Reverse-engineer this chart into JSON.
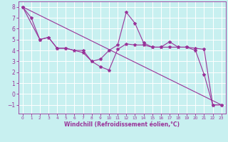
{
  "xlabel": "Windchill (Refroidissement éolien,°C)",
  "bg_color": "#c8f0f0",
  "line_color": "#993399",
  "grid_color": "#ffffff",
  "xlim": [
    -0.5,
    23.5
  ],
  "ylim": [
    -1.8,
    8.5
  ],
  "xticks": [
    0,
    1,
    2,
    3,
    4,
    5,
    6,
    7,
    8,
    9,
    10,
    11,
    12,
    13,
    14,
    15,
    16,
    17,
    18,
    19,
    20,
    21,
    22,
    23
  ],
  "yticks": [
    -1,
    0,
    1,
    2,
    3,
    4,
    5,
    6,
    7,
    8
  ],
  "series1_x": [
    0,
    1,
    2,
    3,
    4,
    5,
    6,
    7,
    8,
    9,
    10,
    11,
    12,
    13,
    14,
    15,
    16,
    17,
    18,
    19,
    20,
    21,
    22,
    23
  ],
  "series1_y": [
    8,
    7,
    5,
    5.2,
    4.2,
    4.2,
    4.0,
    4.0,
    3.0,
    3.2,
    4.0,
    4.5,
    7.5,
    6.5,
    4.7,
    4.3,
    4.3,
    4.8,
    4.3,
    4.3,
    4.0,
    1.8,
    -1.0,
    -1.0
  ],
  "series2_x": [
    0,
    2,
    3,
    4,
    5,
    7,
    8,
    9,
    10,
    11,
    12,
    13,
    14,
    15,
    16,
    17,
    18,
    19,
    20,
    21,
    22,
    23
  ],
  "series2_y": [
    8,
    5,
    5.2,
    4.2,
    4.2,
    3.8,
    3.0,
    2.5,
    2.2,
    4.1,
    4.6,
    4.5,
    4.5,
    4.3,
    4.3,
    4.3,
    4.3,
    4.3,
    4.2,
    4.1,
    -1.0,
    -1.0
  ],
  "series3_x": [
    0,
    23
  ],
  "series3_y": [
    8,
    -1
  ]
}
